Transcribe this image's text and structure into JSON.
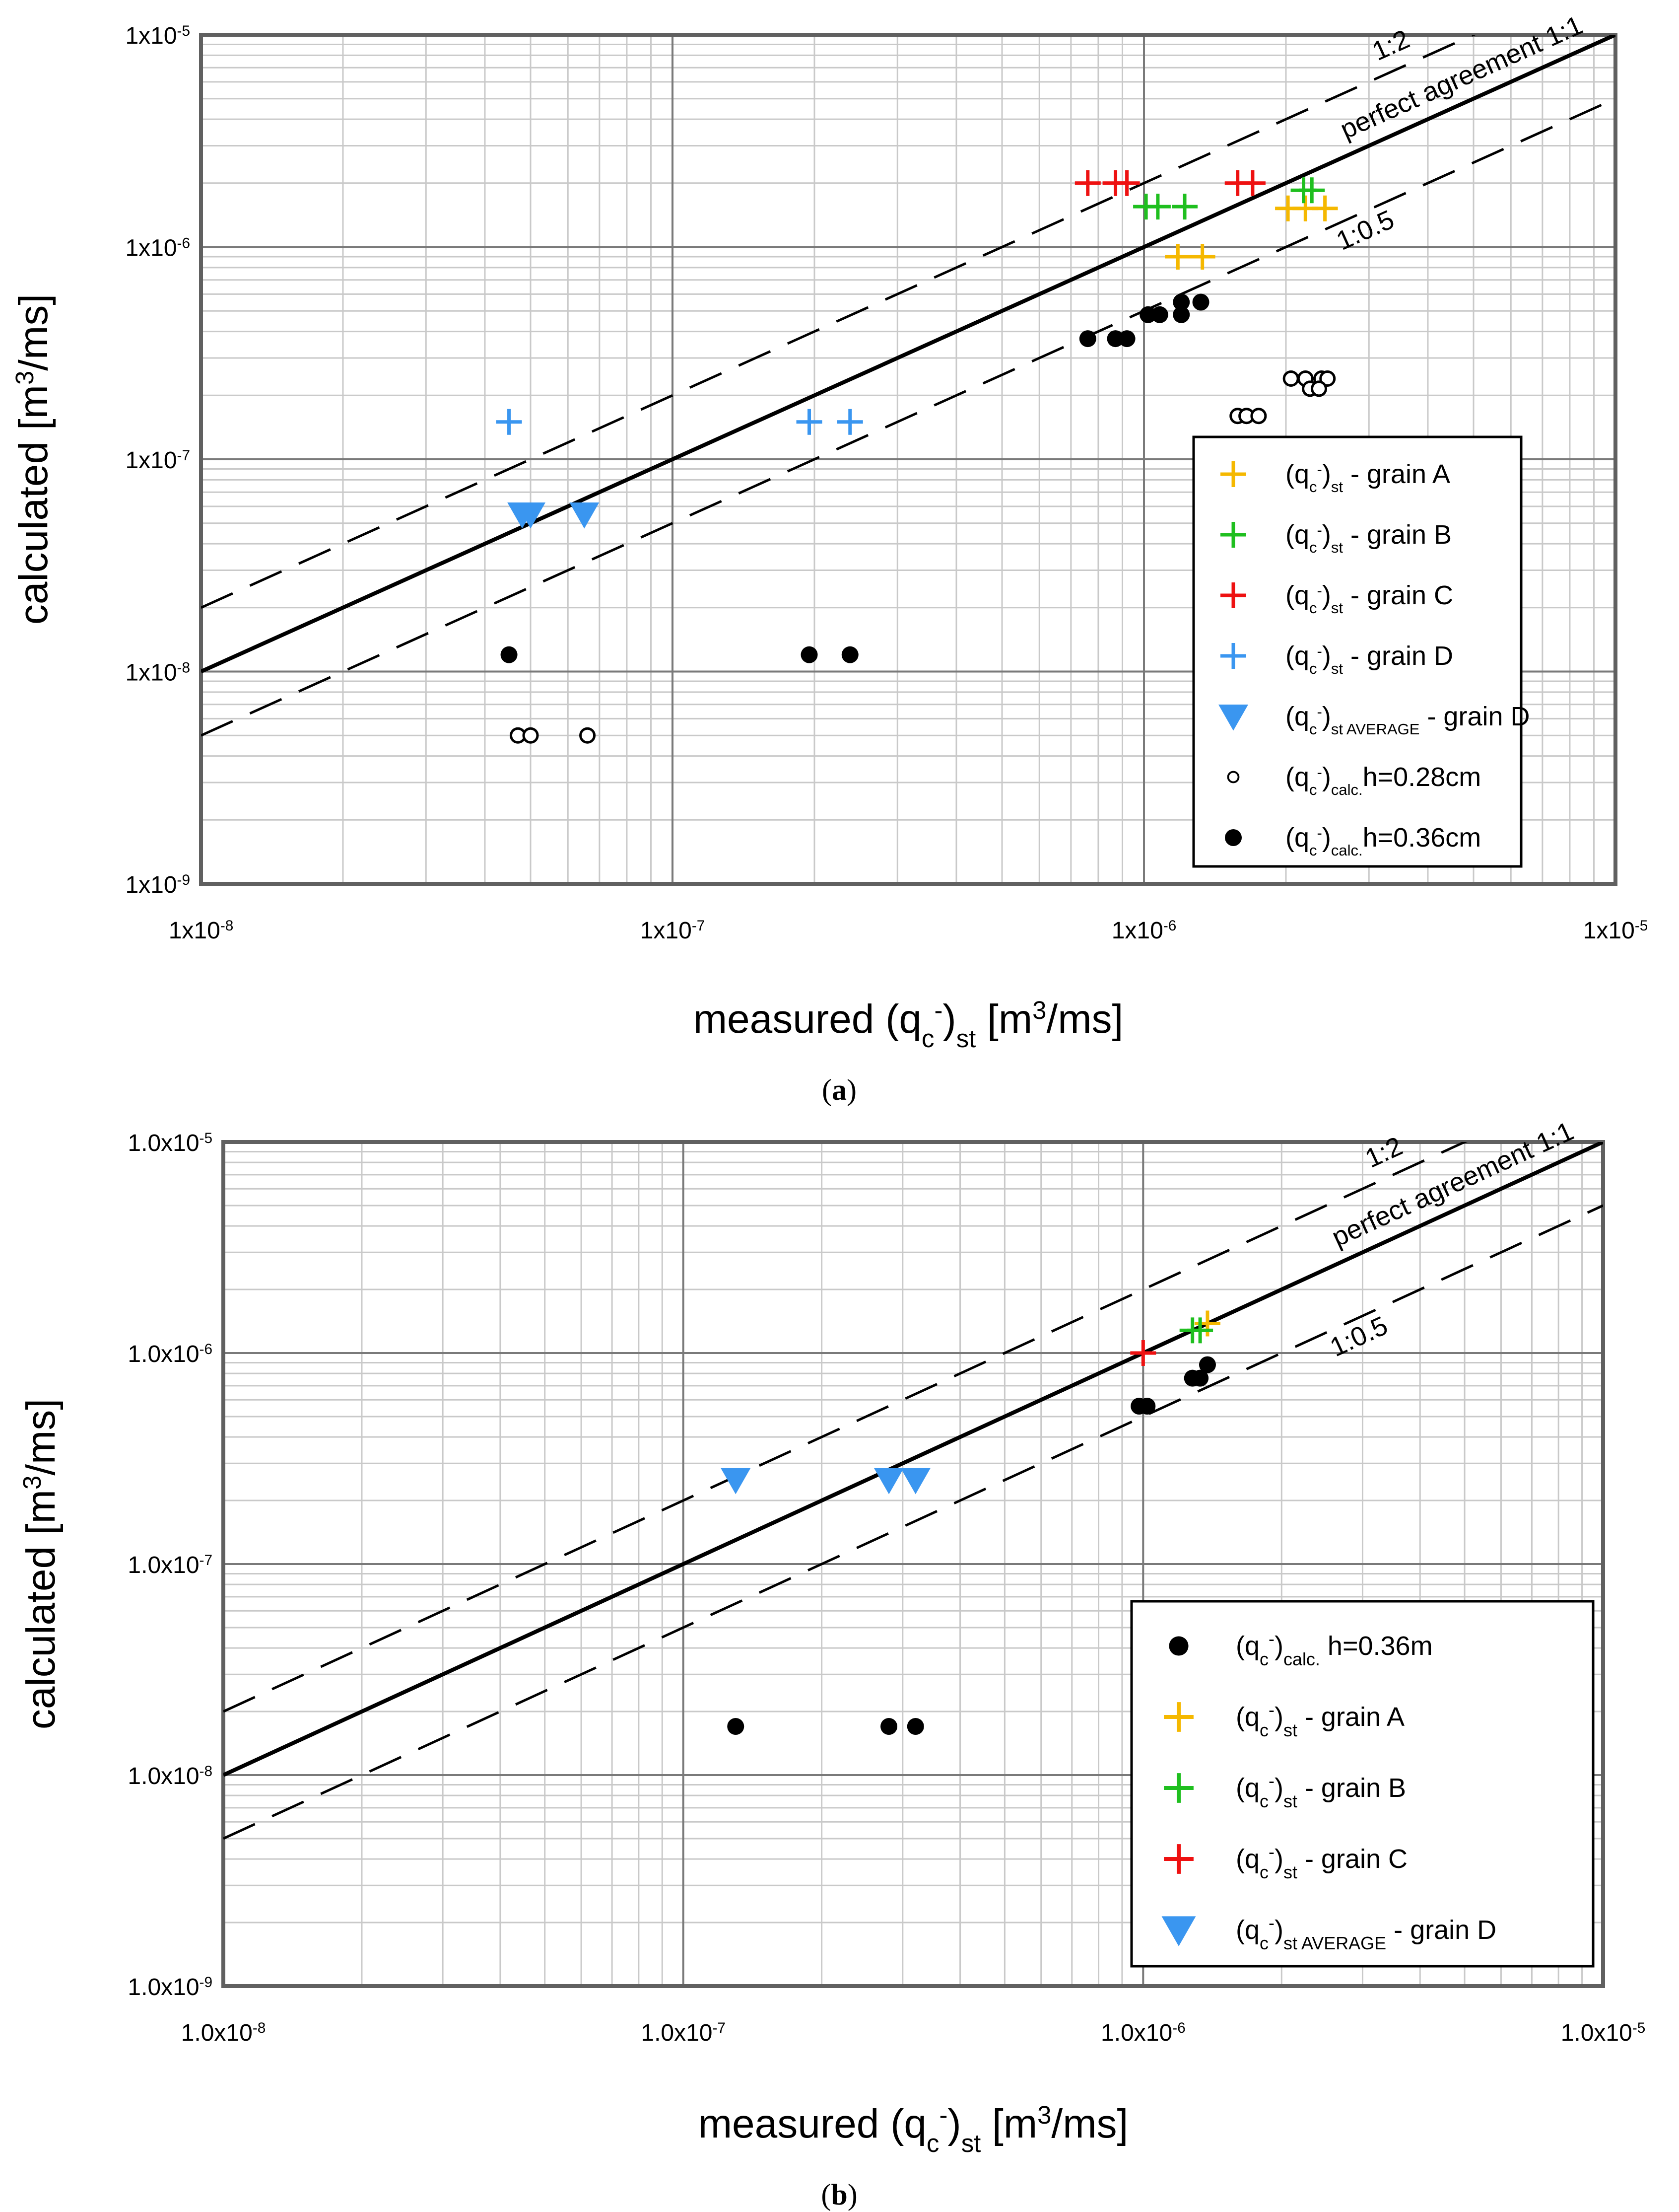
{
  "colors": {
    "grain_A": "#f5b800",
    "grain_B": "#1fbf1f",
    "grain_C": "#ee1111",
    "grain_D": "#3a96f0",
    "calc": "#000000",
    "frame": "#606060"
  },
  "chart_data": [
    {
      "type": "scatter",
      "scale": "log-log",
      "caption": "(a)",
      "xlabel": "measured (qc-)st [m3/ms]",
      "ylabel": "calculated [m3/ms]",
      "xlim": [
        1e-08,
        1e-05
      ],
      "ylim": [
        1e-09,
        1e-05
      ],
      "tick_labels_x": [
        "1x10-8",
        "1x10-7",
        "1x10-6",
        "1x10-5"
      ],
      "tick_labels_y": [
        "1x10-9",
        "1x10-8",
        "1x10-7",
        "1x10-6",
        "1x10-5"
      ],
      "tick_mant": "1x10",
      "tick_exps_x": [
        "-8",
        "-7",
        "-6",
        "-5"
      ],
      "tick_exps_y": [
        "-9",
        "-8",
        "-7",
        "-6",
        "-5"
      ],
      "xlabel_parts": {
        "a": "measured (q",
        "sub": "c",
        "sup": "-",
        "b": ")",
        "sub2": "st",
        "c": " [m",
        "sup2": "3",
        "d": "/ms]"
      },
      "ylabel_parts": {
        "a": "calculated [m",
        "sup": "3",
        "b": "/ms]"
      },
      "lines": [
        {
          "label": "perfect agreement 1:1",
          "ratio": 1,
          "style": "solid"
        },
        {
          "label": "1:2",
          "ratio": 2,
          "style": "dashed"
        },
        {
          "label": "1:0.5",
          "ratio": 0.5,
          "style": "dashed"
        }
      ],
      "series": [
        {
          "name": "(qc-)st - grain A",
          "base": "(q",
          "sub": "st",
          "after": " - grain A",
          "marker": "plus",
          "color_key": "grain_A",
          "points": [
            [
              1.18e-06,
              9e-07
            ],
            [
              1.33e-06,
              9e-07
            ],
            [
              2.02e-06,
              1.52e-06
            ],
            [
              2.2e-06,
              1.52e-06
            ],
            [
              2.42e-06,
              1.52e-06
            ]
          ]
        },
        {
          "name": "(qc-)st - grain B",
          "base": "(q",
          "sub": "st",
          "after": " - grain B",
          "marker": "plus",
          "color_key": "grain_B",
          "points": [
            [
              1.01e-06,
              1.55e-06
            ],
            [
              1.07e-06,
              1.55e-06
            ],
            [
              1.22e-06,
              1.55e-06
            ],
            [
              2.18e-06,
              1.85e-06
            ],
            [
              2.27e-06,
              1.85e-06
            ]
          ]
        },
        {
          "name": "(qc-)st - grain C",
          "base": "(q",
          "sub": "st",
          "after": " - grain C",
          "marker": "plus",
          "color_key": "grain_C",
          "points": [
            [
              7.6e-07,
              2e-06
            ],
            [
              8.7e-07,
              2e-06
            ],
            [
              9.2e-07,
              2e-06
            ],
            [
              1.58e-06,
              2e-06
            ],
            [
              1.7e-06,
              2e-06
            ]
          ]
        },
        {
          "name": "(qc-)st - grain D",
          "base": "(q",
          "sub": "st",
          "after": " - grain D",
          "marker": "plus",
          "color_key": "grain_D",
          "points": [
            [
              4.5e-08,
              1.5e-07
            ],
            [
              1.95e-07,
              1.5e-07
            ],
            [
              2.38e-07,
              1.5e-07
            ]
          ]
        },
        {
          "name": "(qc-)st AVERAGE - grain D",
          "base": "(q",
          "sub": "st AVERAGE",
          "after": " - grain D",
          "marker": "triangle",
          "color_key": "grain_D",
          "points": [
            [
              4.8e-08,
              5.5e-08
            ],
            [
              5e-08,
              5.5e-08
            ],
            [
              6.5e-08,
              5.5e-08
            ]
          ]
        },
        {
          "name": "(qc-)calc.h=0.28cm",
          "base": "(q",
          "sub": "calc.",
          "after": "h=0.28cm",
          "marker": "open-circle",
          "color_key": "calc",
          "points": [
            [
              4.7e-08,
              5e-09
            ],
            [
              5e-08,
              5e-09
            ],
            [
              6.6e-08,
              5e-09
            ],
            [
              1.58e-06,
              1.6e-07
            ],
            [
              1.65e-06,
              1.6e-07
            ],
            [
              1.75e-06,
              1.6e-07
            ],
            [
              2.05e-06,
              2.4e-07
            ],
            [
              2.2e-06,
              2.4e-07
            ],
            [
              2.38e-06,
              2.4e-07
            ],
            [
              2.45e-06,
              2.4e-07
            ],
            [
              2.25e-06,
              2.15e-07
            ],
            [
              2.35e-06,
              2.15e-07
            ]
          ]
        },
        {
          "name": "(qc-)calc.h=0.36cm",
          "base": "(q",
          "sub": "calc.",
          "after": "h=0.36cm",
          "marker": "dot",
          "color_key": "calc",
          "points": [
            [
              4.5e-08,
              1.2e-08
            ],
            [
              1.95e-07,
              1.2e-08
            ],
            [
              2.38e-07,
              1.2e-08
            ],
            [
              7.6e-07,
              3.7e-07
            ],
            [
              8.7e-07,
              3.7e-07
            ],
            [
              9.2e-07,
              3.7e-07
            ],
            [
              1.02e-06,
              4.8e-07
            ],
            [
              1.08e-06,
              4.8e-07
            ],
            [
              1.2e-06,
              4.8e-07
            ],
            [
              1.2e-06,
              5.5e-07
            ],
            [
              1.32e-06,
              5.5e-07
            ]
          ]
        }
      ],
      "legend_order": [
        0,
        1,
        2,
        3,
        4,
        5,
        6
      ],
      "legend_position": "right-center"
    },
    {
      "type": "scatter",
      "scale": "log-log",
      "caption": "(b)",
      "xlabel": "measured (qc-)st [m3/ms]",
      "ylabel": "calculated [m3/ms]",
      "xlim": [
        1e-08,
        1e-05
      ],
      "ylim": [
        1e-09,
        1e-05
      ],
      "tick_labels_x": [
        "1.0x10-8",
        "1.0x10-7",
        "1.0x10-6",
        "1.0x10-5"
      ],
      "tick_labels_y": [
        "1.0x10-9",
        "1.0x10-8",
        "1.0x10-7",
        "1.0x10-6",
        "1.0x10-5"
      ],
      "tick_mant": "1.0x10",
      "tick_exps_x": [
        "-8",
        "-7",
        "-6",
        "-5"
      ],
      "tick_exps_y": [
        "-9",
        "-8",
        "-7",
        "-6",
        "-5"
      ],
      "xlabel_parts": {
        "a": "measured (q",
        "sub": "c",
        "sup": "-",
        "b": ")",
        "sub2": "st",
        "c": " [m",
        "sup2": "3",
        "d": "/ms]"
      },
      "ylabel_parts": {
        "a": "calculated [m",
        "sup": "3",
        "b": "/ms]"
      },
      "lines": [
        {
          "label": "perfect agreement 1:1",
          "ratio": 1,
          "style": "solid"
        },
        {
          "label": "1:2",
          "ratio": 2,
          "style": "dashed"
        },
        {
          "label": "1:0.5",
          "ratio": 0.5,
          "style": "dashed"
        }
      ],
      "series": [
        {
          "name": "(qc-)calc. h=0.36m",
          "base": "(q",
          "sub": "calc.",
          "after": " h=0.36m",
          "marker": "dot",
          "color_key": "calc",
          "points": [
            [
              1.3e-07,
              1.7e-08
            ],
            [
              2.8e-07,
              1.7e-08
            ],
            [
              3.2e-07,
              1.7e-08
            ],
            [
              9.8e-07,
              5.6e-07
            ],
            [
              1.02e-06,
              5.6e-07
            ],
            [
              1.28e-06,
              7.6e-07
            ],
            [
              1.33e-06,
              7.6e-07
            ],
            [
              1.38e-06,
              8.8e-07
            ]
          ]
        },
        {
          "name": "(qc-)st - grain A",
          "base": "(q",
          "sub": "st",
          "after": " - grain A",
          "marker": "plus",
          "color_key": "grain_A",
          "points": [
            [
              1.38e-06,
              1.38e-06
            ]
          ]
        },
        {
          "name": "(qc-)st - grain B",
          "base": "(q",
          "sub": "st",
          "after": " - grain B",
          "marker": "plus",
          "color_key": "grain_B",
          "points": [
            [
              1.28e-06,
              1.28e-06
            ],
            [
              1.33e-06,
              1.28e-06
            ]
          ]
        },
        {
          "name": "(qc-)st - grain C",
          "base": "(q",
          "sub": "st",
          "after": " - grain C",
          "marker": "plus",
          "color_key": "grain_C",
          "points": [
            [
              1e-06,
              1e-06
            ]
          ]
        },
        {
          "name": "(qc-)st AVERAGE - grain D",
          "base": "(q",
          "sub": "st AVERAGE",
          "after": " - grain D",
          "marker": "triangle",
          "color_key": "grain_D",
          "points": [
            [
              1.3e-07,
              2.5e-07
            ],
            [
              2.8e-07,
              2.5e-07
            ],
            [
              3.2e-07,
              2.5e-07
            ]
          ]
        }
      ],
      "legend_order": [
        0,
        1,
        2,
        3,
        4
      ],
      "legend_position": "bottom-right"
    }
  ]
}
